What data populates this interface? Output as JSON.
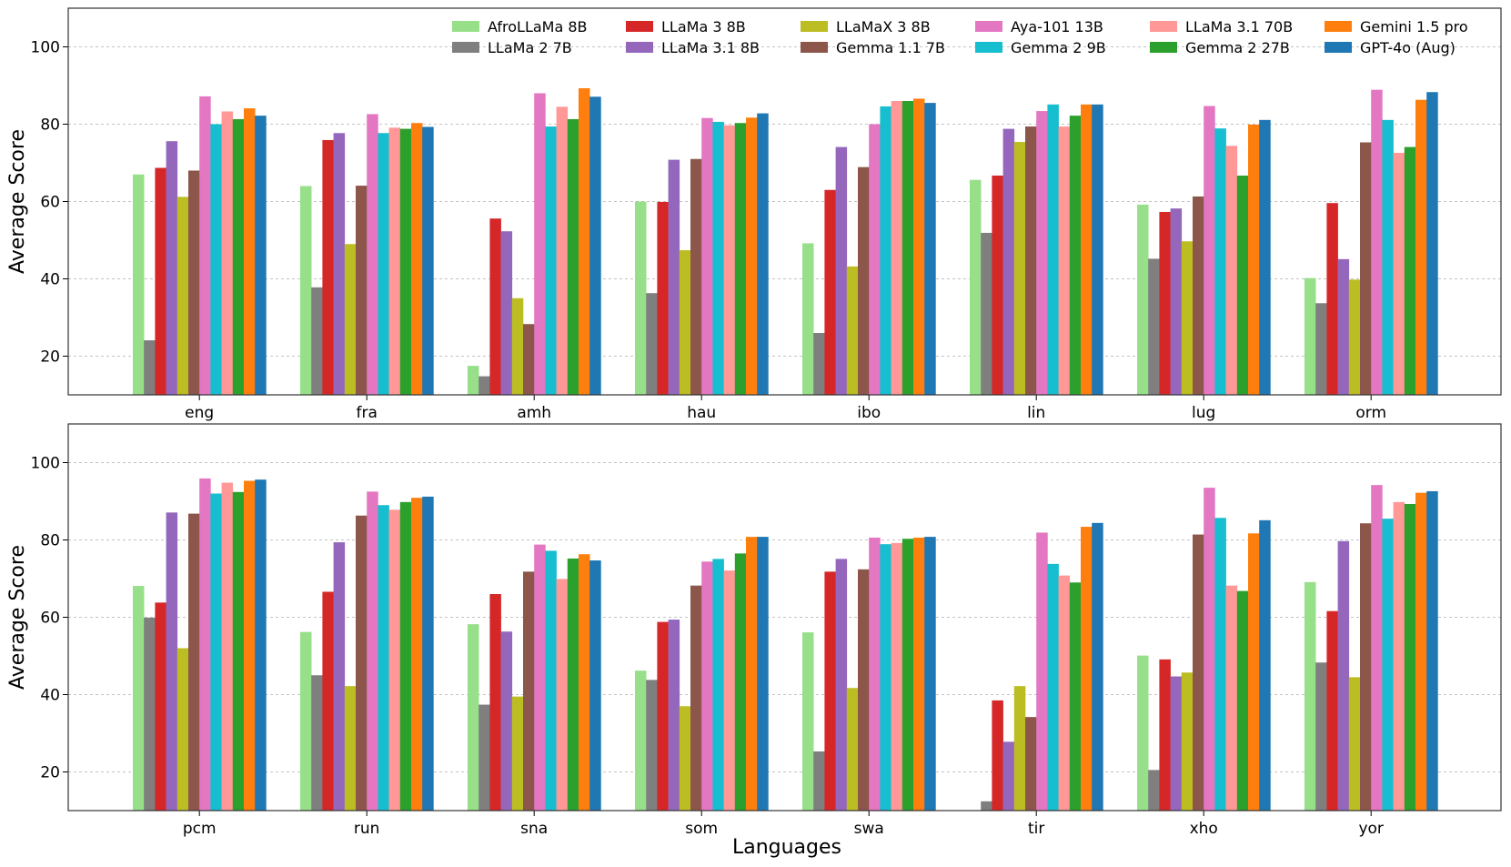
{
  "chart_data": {
    "type": "bar",
    "xlabel": "Languages",
    "ylabel": "Average Score",
    "ylim": [
      10,
      110
    ],
    "yticks": [
      20,
      40,
      60,
      80,
      100
    ],
    "grid": true,
    "legend": {
      "placement": "top-right",
      "entries": [
        {
          "name": "AfroLLaMa 8B",
          "color": "#98df8a"
        },
        {
          "name": "LLaMa 2 7B",
          "color": "#7f7f7f"
        },
        {
          "name": "LLaMa 3 8B",
          "color": "#d62728"
        },
        {
          "name": "LLaMa 3.1 8B",
          "color": "#9467bd"
        },
        {
          "name": "LLaMaX 3 8B",
          "color": "#bcbd22"
        },
        {
          "name": "Gemma 1.1 7B",
          "color": "#8c564b"
        },
        {
          "name": "Aya-101 13B",
          "color": "#e377c2"
        },
        {
          "name": "Gemma 2 9B",
          "color": "#17becf"
        },
        {
          "name": "LLaMa 3.1 70B",
          "color": "#ff9896"
        },
        {
          "name": "Gemma 2 27B",
          "color": "#2ca02c"
        },
        {
          "name": "Gemini 1.5 pro",
          "color": "#ff7f0e"
        },
        {
          "name": "GPT-4o (Aug)",
          "color": "#1f77b4"
        }
      ]
    },
    "panels": [
      {
        "categories": [
          "eng",
          "fra",
          "amh",
          "hau",
          "ibo",
          "lin",
          "lug",
          "orm"
        ],
        "series": [
          {
            "name": "AfroLLaMa 8B",
            "values": [
              67.0,
              64.0,
              17.5,
              60.0,
              49.2,
              65.6,
              59.2,
              40.2
            ]
          },
          {
            "name": "LLaMa 2 7B",
            "values": [
              24.1,
              37.8,
              14.8,
              36.3,
              26.0,
              51.9,
              45.2,
              33.7
            ]
          },
          {
            "name": "LLaMa 3 8B",
            "values": [
              68.7,
              75.9,
              55.6,
              59.9,
              63.0,
              66.7,
              57.3,
              59.6
            ]
          },
          {
            "name": "LLaMa 3.1 8B",
            "values": [
              75.6,
              77.7,
              52.3,
              70.8,
              74.1,
              78.8,
              58.2,
              45.1
            ]
          },
          {
            "name": "LLaMaX 3 8B",
            "values": [
              61.2,
              49.0,
              35.0,
              47.4,
              43.2,
              75.4,
              49.7,
              39.8
            ]
          },
          {
            "name": "Gemma 1.1 7B",
            "values": [
              68.0,
              64.1,
              28.3,
              71.0,
              68.9,
              79.4,
              61.3,
              75.3
            ]
          },
          {
            "name": "Aya-101 13B",
            "values": [
              87.2,
              82.6,
              88.0,
              81.6,
              80.0,
              83.4,
              84.7,
              88.9
            ]
          },
          {
            "name": "Gemma 2 9B",
            "values": [
              80.0,
              77.7,
              79.4,
              80.6,
              84.6,
              85.1,
              78.9,
              81.1
            ]
          },
          {
            "name": "LLaMa 3.1 70B",
            "values": [
              83.3,
              79.1,
              84.5,
              79.7,
              86.0,
              79.4,
              74.4,
              72.6
            ]
          },
          {
            "name": "Gemma 2 27B",
            "values": [
              81.3,
              78.8,
              81.3,
              80.3,
              86.0,
              82.2,
              66.7,
              74.1
            ]
          },
          {
            "name": "Gemini 1.5 pro",
            "values": [
              84.1,
              80.3,
              89.3,
              81.7,
              86.6,
              85.1,
              79.9,
              86.3
            ]
          },
          {
            "name": "GPT-4o (Aug)",
            "values": [
              82.2,
              79.3,
              87.1,
              82.8,
              85.5,
              85.1,
              81.1,
              88.3
            ]
          }
        ]
      },
      {
        "categories": [
          "pcm",
          "run",
          "sna",
          "som",
          "swa",
          "tir",
          "xho",
          "yor"
        ],
        "series": [
          {
            "name": "AfroLLaMa 8B",
            "values": [
              68.1,
              56.2,
              58.2,
              46.2,
              56.1,
              0,
              50.1,
              69.1
            ]
          },
          {
            "name": "LLaMa 2 7B",
            "values": [
              59.9,
              45.0,
              37.4,
              43.8,
              25.3,
              12.4,
              20.5,
              48.3
            ]
          },
          {
            "name": "LLaMa 3 8B",
            "values": [
              63.8,
              66.6,
              66.0,
              58.8,
              71.8,
              38.5,
              49.1,
              61.6
            ]
          },
          {
            "name": "LLaMa 3.1 8B",
            "values": [
              87.1,
              79.4,
              56.3,
              59.4,
              75.1,
              27.8,
              44.7,
              79.7
            ]
          },
          {
            "name": "LLaMaX 3 8B",
            "values": [
              52.0,
              42.2,
              39.5,
              37.0,
              41.7,
              42.2,
              45.7,
              44.5
            ]
          },
          {
            "name": "Gemma 1.1 7B",
            "values": [
              86.8,
              86.3,
              71.8,
              68.2,
              72.4,
              34.2,
              81.4,
              84.3
            ]
          },
          {
            "name": "Aya-101 13B",
            "values": [
              95.9,
              92.5,
              78.8,
              74.4,
              80.6,
              81.9,
              93.5,
              94.2
            ]
          },
          {
            "name": "Gemma 2 9B",
            "values": [
              92.0,
              89.0,
              77.2,
              75.1,
              78.9,
              73.8,
              85.7,
              85.5
            ]
          },
          {
            "name": "LLaMa 3.1 70B",
            "values": [
              94.8,
              87.8,
              69.9,
              72.1,
              79.2,
              70.8,
              68.2,
              89.8
            ]
          },
          {
            "name": "Gemma 2 27B",
            "values": [
              92.4,
              89.8,
              75.2,
              76.5,
              80.3,
              69.0,
              66.8,
              89.3
            ]
          },
          {
            "name": "Gemini 1.5 pro",
            "values": [
              95.3,
              90.9,
              76.3,
              80.8,
              80.6,
              83.4,
              81.7,
              92.2
            ]
          },
          {
            "name": "GPT-4o (Aug)",
            "values": [
              95.6,
              91.2,
              74.7,
              80.8,
              80.8,
              84.4,
              85.1,
              92.6
            ]
          }
        ]
      }
    ]
  }
}
